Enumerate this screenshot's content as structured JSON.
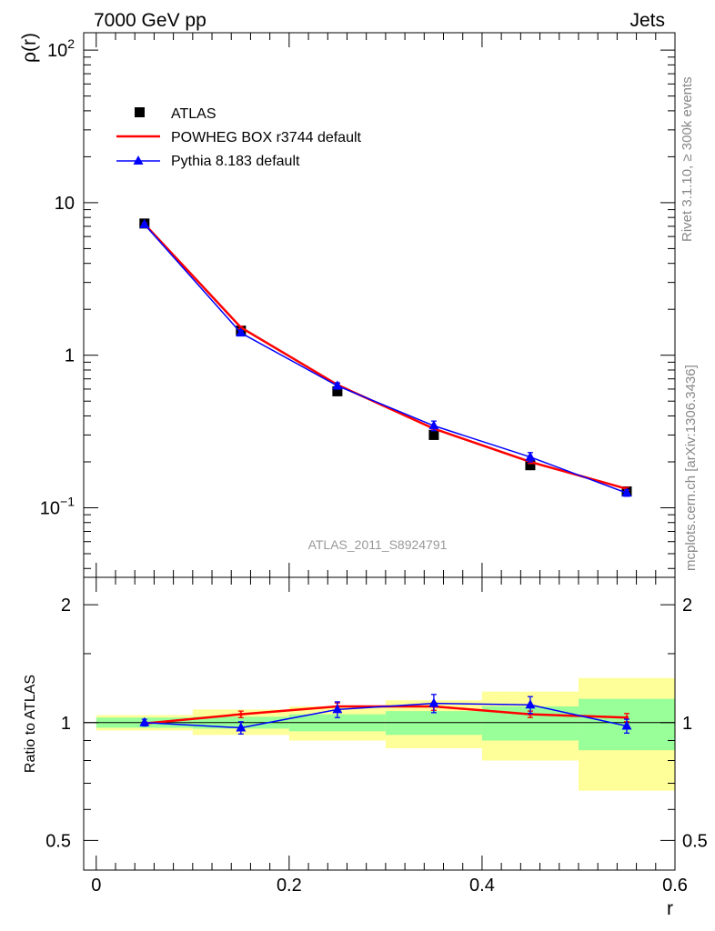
{
  "header": {
    "left": "7000 GeV pp",
    "right": "Jets"
  },
  "side_text": {
    "rivet": "Rivet 3.1.10, ≥ 300k events",
    "mcplots": "mcplots.cern.ch [arXiv:1306.3436]"
  },
  "watermark": "ATLAS_2011_S8924791",
  "colors": {
    "data": "#000000",
    "powheg": "#ff0000",
    "pythia": "#0000ff",
    "band_inner": "#99ff99",
    "band_outer": "#ffff99"
  },
  "chart_data": [
    {
      "type": "line",
      "panel": "main",
      "yscale": "log",
      "ylabel": "ρ(r)",
      "xlim": [
        -0.013,
        0.6
      ],
      "ylim": [
        0.035,
        130
      ],
      "y_ticks": [
        {
          "value": 100,
          "label": "10",
          "sup": "2"
        },
        {
          "value": 10,
          "label": "10",
          "sup": ""
        },
        {
          "value": 1,
          "label": "1",
          "sup": ""
        },
        {
          "value": 0.1,
          "label": "10",
          "sup": "−1"
        }
      ],
      "x": [
        0.05,
        0.15,
        0.25,
        0.35,
        0.45,
        0.55
      ],
      "series": [
        {
          "name": "ATLAS",
          "style": "marker-square",
          "values": [
            7.3,
            1.45,
            0.58,
            0.3,
            0.19,
            0.128
          ]
        },
        {
          "name": "POWHEG BOX r3744 default",
          "style": "line",
          "values": [
            7.25,
            1.52,
            0.64,
            0.33,
            0.2,
            0.133
          ],
          "errors": [
            0.12,
            0.03,
            0.013,
            0.007,
            0.005,
            0.003
          ]
        },
        {
          "name": "Pythia 8.183 default",
          "style": "line-triangle",
          "values": [
            7.2,
            1.4,
            0.63,
            0.345,
            0.215,
            0.125
          ],
          "errors": [
            0.14,
            0.05,
            0.03,
            0.025,
            0.015,
            0.006
          ]
        }
      ],
      "legend": "top-left"
    },
    {
      "type": "line",
      "panel": "ratio",
      "yscale": "log",
      "ylabel": "Ratio to ATLAS",
      "xlabel": "r",
      "xlim": [
        -0.013,
        0.6
      ],
      "ylim": [
        0.42,
        2.35
      ],
      "x_ticks": [
        0,
        0.2,
        0.4,
        0.6
      ],
      "x_tick_labels": [
        "0",
        "0.2",
        "0.4",
        "0.6"
      ],
      "y_ticks": [
        0.5,
        1,
        2
      ],
      "y_tick_labels": [
        "0.5",
        "1",
        "2"
      ],
      "reference": 1,
      "bins": [
        [
          0,
          0.1
        ],
        [
          0.1,
          0.2
        ],
        [
          0.2,
          0.3
        ],
        [
          0.3,
          0.4
        ],
        [
          0.4,
          0.5
        ],
        [
          0.5,
          0.6
        ]
      ],
      "band_inner": [
        [
          0.97,
          1.03
        ],
        [
          0.965,
          1.035
        ],
        [
          0.95,
          1.05
        ],
        [
          0.93,
          1.07
        ],
        [
          0.9,
          1.1
        ],
        [
          0.85,
          1.15
        ]
      ],
      "band_outer": [
        [
          0.955,
          1.045
        ],
        [
          0.93,
          1.08
        ],
        [
          0.9,
          1.1
        ],
        [
          0.86,
          1.14
        ],
        [
          0.8,
          1.2
        ],
        [
          0.67,
          1.3
        ]
      ],
      "x": [
        0.05,
        0.15,
        0.25,
        0.35,
        0.45,
        0.55
      ],
      "series": [
        {
          "name": "POWHEG BOX r3744 default",
          "values": [
            0.995,
            1.05,
            1.1,
            1.1,
            1.05,
            1.03
          ],
          "errors": [
            0.01,
            0.02,
            0.022,
            0.025,
            0.02,
            0.025
          ]
        },
        {
          "name": "Pythia 8.183 default",
          "values": [
            1.0,
            0.97,
            1.08,
            1.12,
            1.11,
            0.98
          ],
          "errors": [
            0.02,
            0.035,
            0.05,
            0.06,
            0.055,
            0.04
          ]
        }
      ]
    }
  ]
}
